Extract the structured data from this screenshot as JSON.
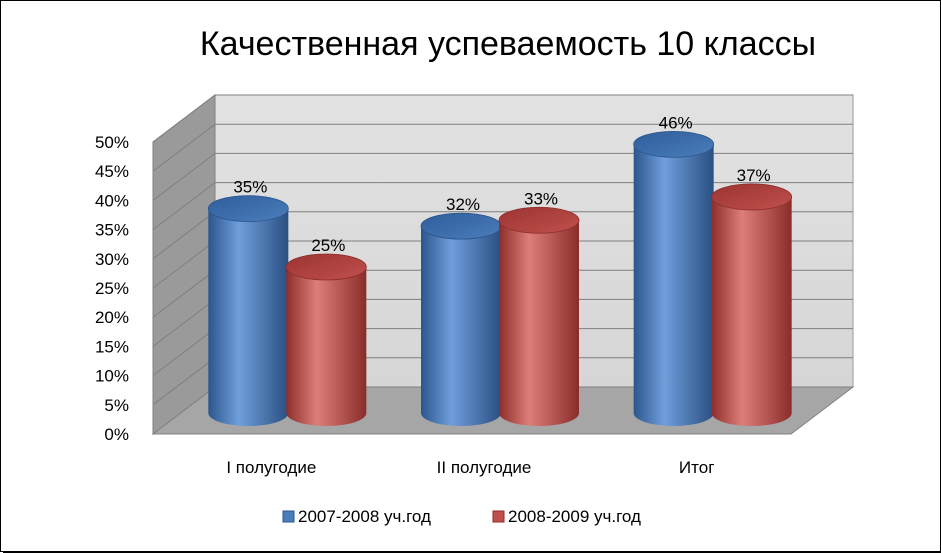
{
  "chart_data": {
    "type": "bar",
    "title": "Качественная успеваемость 10 классы",
    "categories": [
      "I полугодие",
      "II полугодие",
      "Итог"
    ],
    "series": [
      {
        "name": "2007-2008 уч.год",
        "values": [
          35,
          32,
          46
        ],
        "labels": [
          "35%",
          "32%",
          "46%"
        ],
        "color": "#4A7EBB"
      },
      {
        "name": "2008-2009 уч.год",
        "values": [
          25,
          33,
          37
        ],
        "labels": [
          "25%",
          "33%",
          "37%"
        ],
        "color": "#C0504D"
      }
    ],
    "ylim": [
      0,
      50
    ],
    "y_ticks": [
      "0%",
      "5%",
      "10%",
      "15%",
      "20%",
      "25%",
      "30%",
      "35%",
      "40%",
      "45%",
      "50%"
    ],
    "grid": true,
    "legend_position": "bottom",
    "style": "3d-cylinder"
  }
}
